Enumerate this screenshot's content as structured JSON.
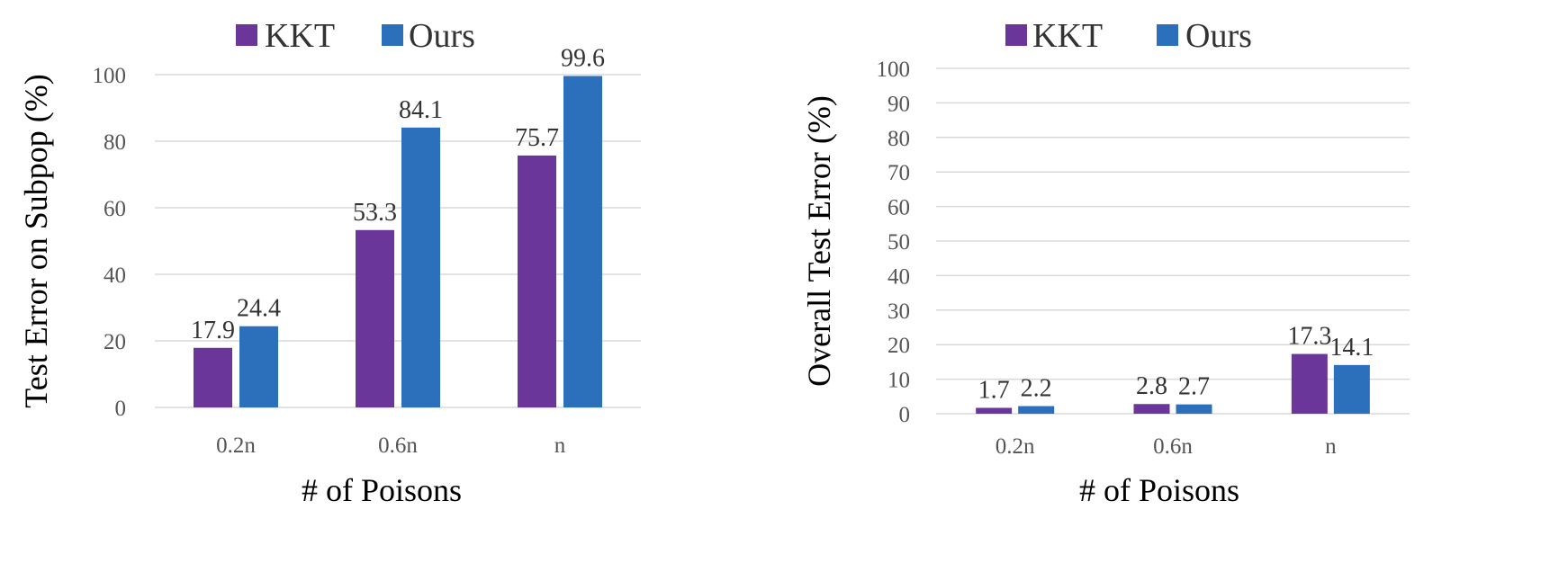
{
  "chart_data": [
    {
      "type": "bar",
      "categories": [
        "0.2n",
        "0.6n",
        "n"
      ],
      "series": [
        {
          "name": "KKT",
          "color": "#6a3699",
          "values": [
            17.9,
            53.3,
            75.7
          ]
        },
        {
          "name": "Ours",
          "color": "#2c6fba",
          "values": [
            24.4,
            84.1,
            99.6
          ]
        }
      ],
      "data_labels": [
        [
          "17.9",
          "53.3",
          "75.7"
        ],
        [
          "24.4",
          "84.1",
          "99.6"
        ]
      ],
      "xlabel": "# of Poisons",
      "ylabel": "Test Error on Subpop (%)",
      "ylim": [
        0,
        100
      ],
      "yticks": [
        "0",
        "20",
        "40",
        "60",
        "80",
        "100"
      ],
      "grid": true,
      "legend_position": "top"
    },
    {
      "type": "bar",
      "categories": [
        "0.2n",
        "0.6n",
        "n"
      ],
      "series": [
        {
          "name": "KKT",
          "color": "#6a3699",
          "values": [
            1.7,
            2.8,
            17.3
          ]
        },
        {
          "name": "Ours",
          "color": "#2c6fba",
          "values": [
            2.2,
            2.7,
            14.1
          ]
        }
      ],
      "data_labels": [
        [
          "1.7",
          "2.8",
          "17.3"
        ],
        [
          "2.2",
          "2.7",
          "14.1"
        ]
      ],
      "xlabel": "# of Poisons",
      "ylabel": "Overall Test Error (%)",
      "ylim": [
        0,
        100
      ],
      "yticks": [
        "0",
        "10",
        "20",
        "30",
        "40",
        "50",
        "60",
        "70",
        "80",
        "90",
        "100"
      ],
      "grid": true,
      "legend_position": "top"
    }
  ]
}
